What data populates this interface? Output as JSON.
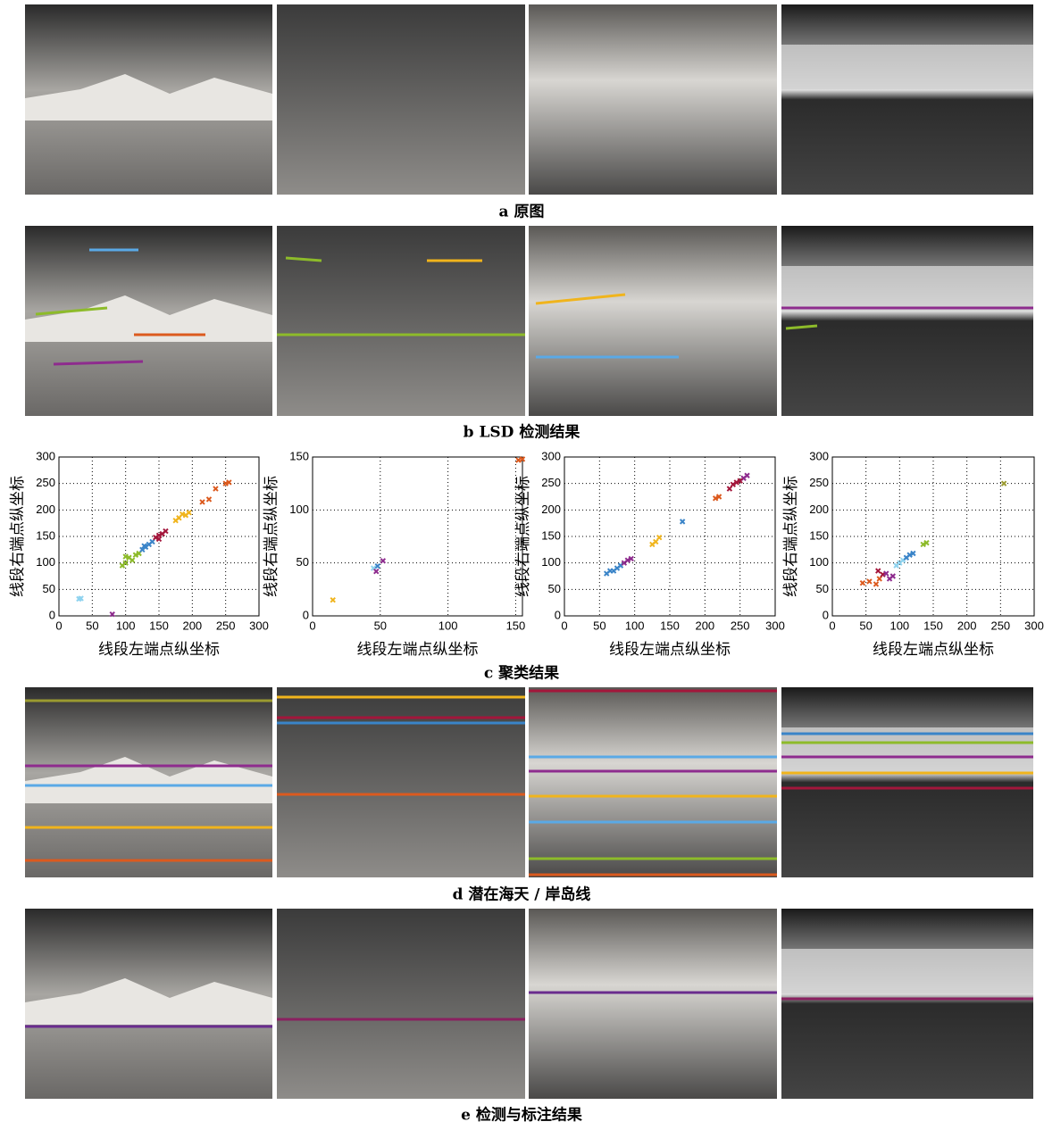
{
  "captions": [
    "a  原图",
    "b  LSD 检测结果",
    "c  聚类结果",
    "d  潜在海天 / 岸岛线",
    "e  检测与标注结果"
  ],
  "charts": [
    {
      "type": "scatter",
      "xlabel": "线段左端点纵坐标",
      "ylabel": "线段右端点纵坐标",
      "xlim": [
        0,
        300
      ],
      "ylim": [
        0,
        300
      ],
      "xticks": [
        0,
        50,
        100,
        150,
        200,
        250,
        300
      ],
      "yticks": [
        0,
        50,
        100,
        150,
        200,
        250,
        300
      ],
      "grid": true,
      "series": [
        {
          "color": "#8fd3ef",
          "x": [
            30,
            33
          ],
          "y": [
            32,
            33
          ]
        },
        {
          "color": "#8e2c8e",
          "x": [
            80
          ],
          "y": [
            3
          ]
        },
        {
          "color": "#8dbb2a",
          "x": [
            95,
            100,
            105,
            110,
            115,
            120,
            100
          ],
          "y": [
            95,
            100,
            110,
            105,
            115,
            118,
            112
          ]
        },
        {
          "color": "#3a84c8",
          "x": [
            125,
            130,
            135,
            140,
            128
          ],
          "y": [
            125,
            130,
            135,
            140,
            132
          ]
        },
        {
          "color": "#a3163b",
          "x": [
            145,
            150,
            155,
            160,
            150
          ],
          "y": [
            148,
            152,
            155,
            160,
            145
          ]
        },
        {
          "color": "#f0b41c",
          "x": [
            175,
            180,
            190,
            195,
            185
          ],
          "y": [
            180,
            185,
            190,
            195,
            192
          ]
        },
        {
          "color": "#dc5a1e",
          "x": [
            215,
            225,
            235,
            250,
            255
          ],
          "y": [
            215,
            220,
            240,
            250,
            252
          ]
        }
      ]
    },
    {
      "type": "scatter",
      "xlabel": "线段左端点纵坐标",
      "ylabel": "线段右端点纵坐标",
      "xlim": [
        0,
        155
      ],
      "ylim": [
        0,
        150
      ],
      "xticks": [
        0,
        50,
        100,
        150
      ],
      "yticks": [
        0,
        50,
        100,
        150
      ],
      "grid": true,
      "series": [
        {
          "color": "#f0b41c",
          "x": [
            15
          ],
          "y": [
            15
          ]
        },
        {
          "color": "#8fd3ef",
          "x": [
            45
          ],
          "y": [
            45
          ]
        },
        {
          "color": "#3a84c8",
          "x": [
            48
          ],
          "y": [
            47
          ]
        },
        {
          "color": "#8e2c8e",
          "x": [
            52,
            47
          ],
          "y": [
            52,
            42
          ]
        },
        {
          "color": "#dc5a1e",
          "x": [
            152,
            155
          ],
          "y": [
            147,
            148
          ]
        }
      ]
    },
    {
      "type": "scatter",
      "xlabel": "线段左端点纵坐标",
      "ylabel": "线段右端点纵坐标",
      "xlim": [
        0,
        300
      ],
      "ylim": [
        0,
        300
      ],
      "xticks": [
        0,
        50,
        100,
        150,
        200,
        250,
        300
      ],
      "yticks": [
        0,
        50,
        100,
        150,
        200,
        250,
        300
      ],
      "grid": true,
      "series": [
        {
          "color": "#3a84c8",
          "x": [
            60,
            65,
            70,
            75,
            80,
            168
          ],
          "y": [
            80,
            85,
            85,
            90,
            95,
            178
          ]
        },
        {
          "color": "#8e2c8e",
          "x": [
            85,
            90,
            95,
            255,
            260
          ],
          "y": [
            100,
            105,
            108,
            260,
            265
          ]
        },
        {
          "color": "#f0b41c",
          "x": [
            125,
            130,
            135
          ],
          "y": [
            135,
            140,
            148
          ]
        },
        {
          "color": "#dc5a1e",
          "x": [
            215,
            220
          ],
          "y": [
            222,
            225
          ]
        },
        {
          "color": "#a3163b",
          "x": [
            235,
            240,
            245,
            250
          ],
          "y": [
            240,
            248,
            252,
            255
          ]
        }
      ]
    },
    {
      "type": "scatter",
      "xlabel": "线段左端点纵坐标",
      "ylabel": "线段右端点纵坐标",
      "xlim": [
        0,
        300
      ],
      "ylim": [
        0,
        300
      ],
      "xticks": [
        0,
        50,
        100,
        150,
        200,
        250,
        300
      ],
      "yticks": [
        0,
        50,
        100,
        150,
        200,
        250,
        300
      ],
      "grid": true,
      "series": [
        {
          "color": "#dc5a1e",
          "x": [
            45,
            55,
            65,
            70
          ],
          "y": [
            62,
            65,
            60,
            70
          ]
        },
        {
          "color": "#a3163b",
          "x": [
            68,
            75
          ],
          "y": [
            85,
            78
          ]
        },
        {
          "color": "#8e2c8e",
          "x": [
            80,
            85,
            90
          ],
          "y": [
            80,
            70,
            75
          ]
        },
        {
          "color": "#8fd3ef",
          "x": [
            95,
            100,
            105
          ],
          "y": [
            95,
            100,
            105
          ]
        },
        {
          "color": "#3a84c8",
          "x": [
            110,
            115,
            120
          ],
          "y": [
            110,
            115,
            118
          ]
        },
        {
          "color": "#8dbb2a",
          "x": [
            135,
            140
          ],
          "y": [
            135,
            138
          ]
        },
        {
          "color": "#9a9a30",
          "x": [
            255
          ],
          "y": [
            250
          ]
        }
      ]
    }
  ]
}
